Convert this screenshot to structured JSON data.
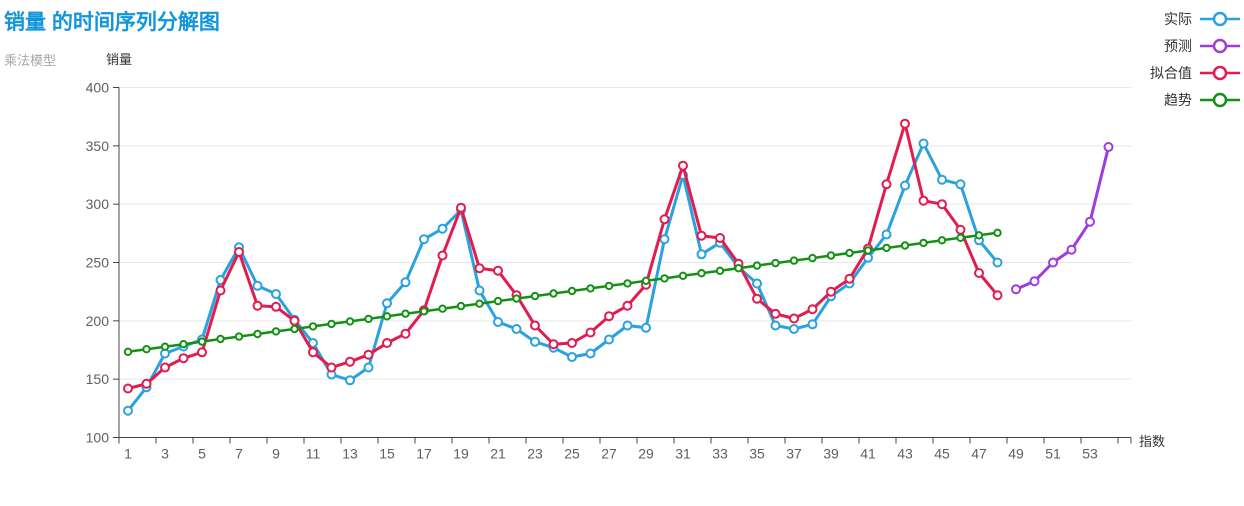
{
  "header": {
    "title": "销量 的时间序列分解图",
    "subtitle": "乘法模型",
    "title_color": "#1296db"
  },
  "chart_data": {
    "type": "line",
    "title": "销量 的时间序列分解图",
    "subtitle": "乘法模型",
    "grid": true,
    "legend_position": "top-right",
    "x_axis": {
      "name": "指数",
      "label_every": 2,
      "categories": [
        1,
        2,
        3,
        4,
        5,
        6,
        7,
        8,
        9,
        10,
        11,
        12,
        13,
        14,
        15,
        16,
        17,
        18,
        19,
        20,
        21,
        22,
        23,
        24,
        25,
        26,
        27,
        28,
        29,
        30,
        31,
        32,
        33,
        34,
        35,
        36,
        37,
        38,
        39,
        40,
        41,
        42,
        43,
        44,
        45,
        46,
        47,
        48,
        49,
        50,
        51,
        52,
        53,
        54
      ]
    },
    "y_axis": {
      "name": "销量",
      "min": 100,
      "max": 400,
      "tick_step": 50
    },
    "series": [
      {
        "name": "实际",
        "color": "#2aa2e0",
        "start_x": 1,
        "line_width": 3,
        "marker_r": 4,
        "values": [
          123,
          143,
          172,
          178,
          184,
          235,
          263,
          230,
          223,
          201,
          181,
          154,
          149,
          160,
          215,
          233,
          270,
          279,
          295,
          226,
          199,
          193,
          182,
          177,
          169,
          172,
          184,
          196,
          194,
          270,
          325,
          257,
          267,
          246,
          232,
          196,
          193,
          197,
          221,
          232,
          254,
          274,
          316,
          352,
          321,
          317,
          269,
          250
        ]
      },
      {
        "name": "预测",
        "color": "#a03cdc",
        "start_x": 49,
        "line_width": 3,
        "marker_r": 4,
        "values": [
          227,
          234,
          250,
          261,
          285,
          349
        ]
      },
      {
        "name": "拟合值",
        "color": "#e21c4e",
        "start_x": 1,
        "line_width": 3,
        "marker_r": 4,
        "values": [
          142,
          146,
          160,
          168,
          173,
          226,
          259,
          213,
          212,
          200,
          173,
          160,
          165,
          171,
          181,
          189,
          209,
          256,
          297,
          245,
          243,
          222,
          196,
          180,
          181,
          190,
          204,
          213,
          231,
          287,
          333,
          273,
          271,
          249,
          219,
          206,
          202,
          210,
          225,
          236,
          262,
          317,
          369,
          303,
          300,
          278,
          241,
          222
        ]
      },
      {
        "name": "趋势",
        "color": "#149114",
        "start_x": 1,
        "line_width": 2.5,
        "marker_r": 3.2,
        "values": [
          173.5,
          175.7,
          177.8,
          180,
          182.2,
          184.4,
          186.5,
          188.7,
          190.9,
          193,
          195.2,
          197.4,
          199.5,
          201.7,
          203.9,
          206.1,
          208.2,
          210.4,
          212.6,
          214.7,
          216.9,
          219.1,
          221.2,
          223.4,
          225.6,
          227.8,
          229.9,
          232.1,
          234.3,
          236.4,
          238.6,
          240.8,
          242.9,
          245.1,
          247.3,
          249.5,
          251.6,
          253.8,
          256,
          258.1,
          260.3,
          262.5,
          264.6,
          266.8,
          269,
          271.2,
          273.3,
          275.5
        ]
      }
    ]
  }
}
